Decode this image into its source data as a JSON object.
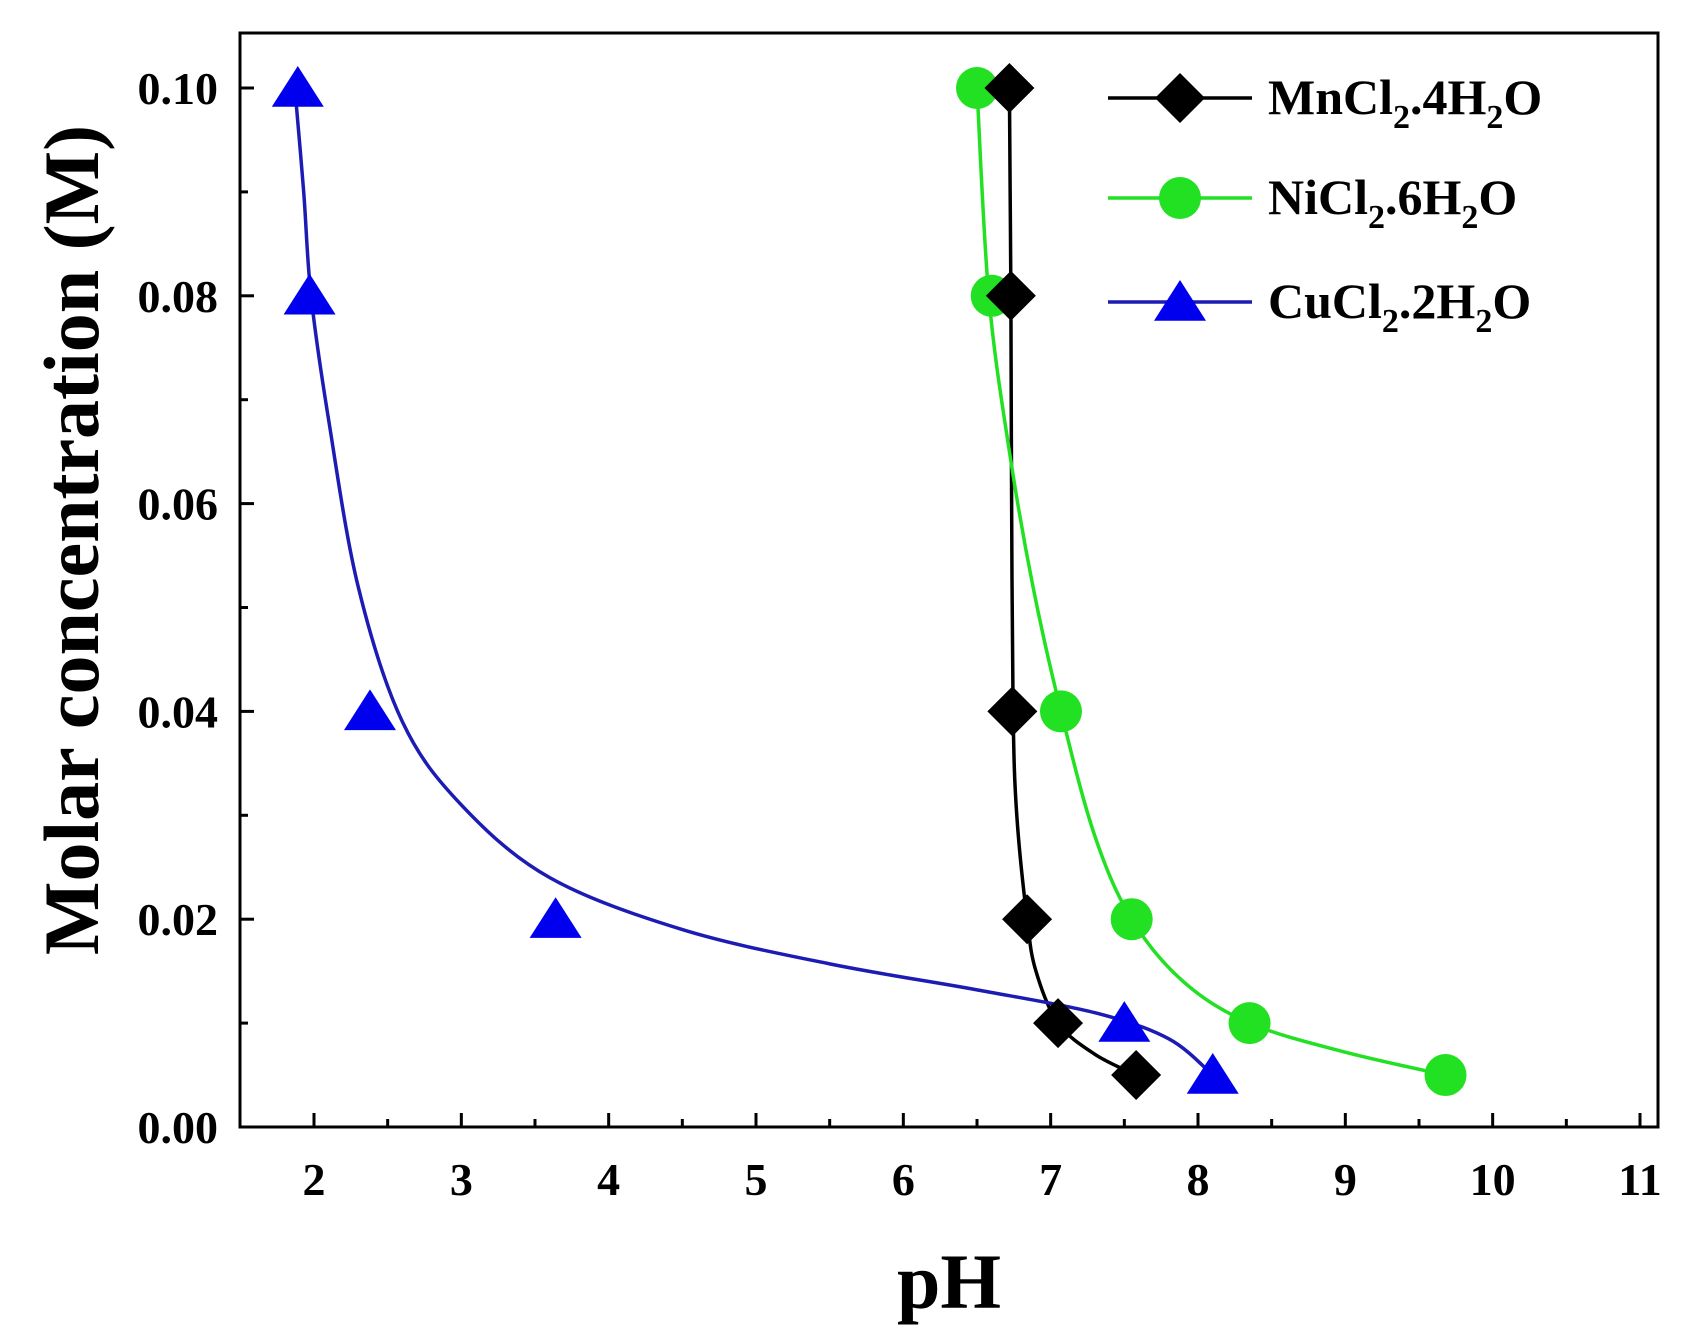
{
  "chart_data": {
    "type": "scatter",
    "title": "",
    "xlabel": "pH",
    "ylabel": "Molar concentration (M)",
    "xlim": [
      1.5,
      11
    ],
    "ylim": [
      0,
      0.105
    ],
    "x_ticks": [
      2,
      3,
      4,
      5,
      6,
      7,
      8,
      9,
      10,
      11
    ],
    "y_ticks": [
      0.0,
      0.02,
      0.04,
      0.06,
      0.08,
      0.1
    ],
    "x_tick_labels": [
      "2",
      "3",
      "4",
      "5",
      "6",
      "7",
      "8",
      "9",
      "10",
      "11"
    ],
    "y_tick_labels": [
      "0.00",
      "0.02",
      "0.04",
      "0.06",
      "0.08",
      "0.10"
    ],
    "legend_position": "top-right",
    "series": [
      {
        "name": "MnCl2.4H2O",
        "legend": {
          "base1": "MnCl",
          "sub1": "2",
          "base2": ".4H",
          "sub2": "2",
          "base3": "O"
        },
        "marker": "diamond",
        "color": "#000000",
        "points": [
          {
            "x": 6.72,
            "y": 0.1
          },
          {
            "x": 6.73,
            "y": 0.08
          },
          {
            "x": 6.74,
            "y": 0.04
          },
          {
            "x": 6.84,
            "y": 0.02
          },
          {
            "x": 7.05,
            "y": 0.01
          },
          {
            "x": 7.58,
            "y": 0.005
          }
        ]
      },
      {
        "name": "NiCl2.6H2O",
        "legend": {
          "base1": "NiCl",
          "sub1": "2",
          "base2": ".6H",
          "sub2": "2",
          "base3": "O"
        },
        "marker": "circle",
        "color": "#22e022",
        "points": [
          {
            "x": 6.5,
            "y": 0.1
          },
          {
            "x": 6.6,
            "y": 0.08
          },
          {
            "x": 7.07,
            "y": 0.04
          },
          {
            "x": 7.55,
            "y": 0.02
          },
          {
            "x": 8.35,
            "y": 0.01
          },
          {
            "x": 9.68,
            "y": 0.005
          }
        ]
      },
      {
        "name": "CuCl2.2H2O",
        "legend": {
          "base1": "CuCl",
          "sub1": "2",
          "base2": ".2H",
          "sub2": "2",
          "base3": "O"
        },
        "marker": "triangle",
        "color": "#0000ee",
        "fit_color": "#1c1cb4",
        "points": [
          {
            "x": 1.89,
            "y": 0.1
          },
          {
            "x": 1.97,
            "y": 0.08
          },
          {
            "x": 2.38,
            "y": 0.04
          },
          {
            "x": 3.64,
            "y": 0.02
          },
          {
            "x": 7.5,
            "y": 0.01
          },
          {
            "x": 8.1,
            "y": 0.005
          }
        ]
      }
    ],
    "fit_curves": [
      {
        "series": "MnCl2.4H2O",
        "points": [
          [
            6.72,
            0.1
          ],
          [
            6.725,
            0.09
          ],
          [
            6.73,
            0.08
          ],
          [
            6.735,
            0.06
          ],
          [
            6.745,
            0.04
          ],
          [
            6.77,
            0.03
          ],
          [
            6.84,
            0.02
          ],
          [
            6.9,
            0.015
          ],
          [
            7.05,
            0.01
          ],
          [
            7.3,
            0.007
          ],
          [
            7.58,
            0.005
          ]
        ]
      },
      {
        "series": "NiCl2.6H2O",
        "points": [
          [
            6.5,
            0.1
          ],
          [
            6.58,
            0.08
          ],
          [
            6.72,
            0.065
          ],
          [
            6.88,
            0.052
          ],
          [
            7.07,
            0.04
          ],
          [
            7.3,
            0.028
          ],
          [
            7.55,
            0.02
          ],
          [
            7.9,
            0.014
          ],
          [
            8.35,
            0.01
          ],
          [
            9.0,
            0.0072
          ],
          [
            9.68,
            0.005
          ]
        ]
      },
      {
        "series": "CuCl2.2H2O",
        "points": [
          [
            1.87,
            0.1
          ],
          [
            1.93,
            0.09
          ],
          [
            1.98,
            0.08
          ],
          [
            2.1,
            0.068
          ],
          [
            2.3,
            0.052
          ],
          [
            2.6,
            0.039
          ],
          [
            3.0,
            0.031
          ],
          [
            3.6,
            0.024
          ],
          [
            4.5,
            0.019
          ],
          [
            5.5,
            0.0157
          ],
          [
            6.5,
            0.0132
          ],
          [
            7.3,
            0.011
          ],
          [
            7.8,
            0.0085
          ],
          [
            8.1,
            0.005
          ]
        ]
      }
    ]
  }
}
